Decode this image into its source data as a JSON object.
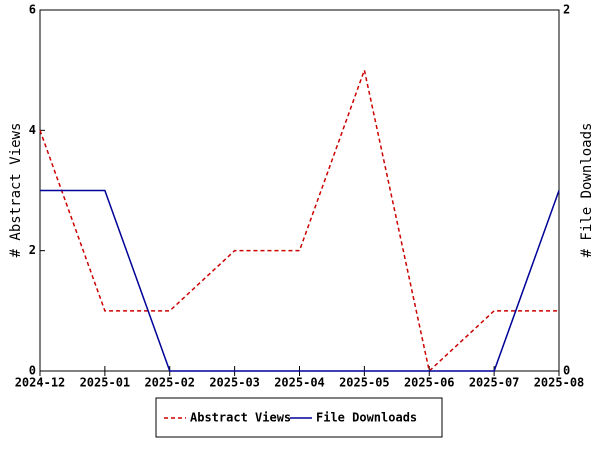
{
  "chart_data": {
    "type": "line",
    "categories": [
      "2024-12",
      "2025-01",
      "2025-02",
      "2025-03",
      "2025-04",
      "2025-05",
      "2025-06",
      "2025-07",
      "2025-08"
    ],
    "ylabel": "# Abstract Views",
    "y2label": "# File Downloads",
    "ylim": [
      0,
      6
    ],
    "yticks": [
      0,
      2,
      4,
      6
    ],
    "y2lim": [
      0,
      2
    ],
    "y2ticks": [
      0,
      2
    ],
    "series": [
      {
        "name": "Abstract Views",
        "color": "#cc0000",
        "dash": true,
        "values": [
          4,
          1,
          1,
          2,
          2,
          5,
          0,
          1,
          1
        ]
      },
      {
        "name": "File Downloads",
        "color": "#000099",
        "dash": false,
        "axis": "y2",
        "values": [
          1,
          1,
          0,
          0,
          0,
          0,
          0,
          0,
          1
        ]
      }
    ]
  }
}
